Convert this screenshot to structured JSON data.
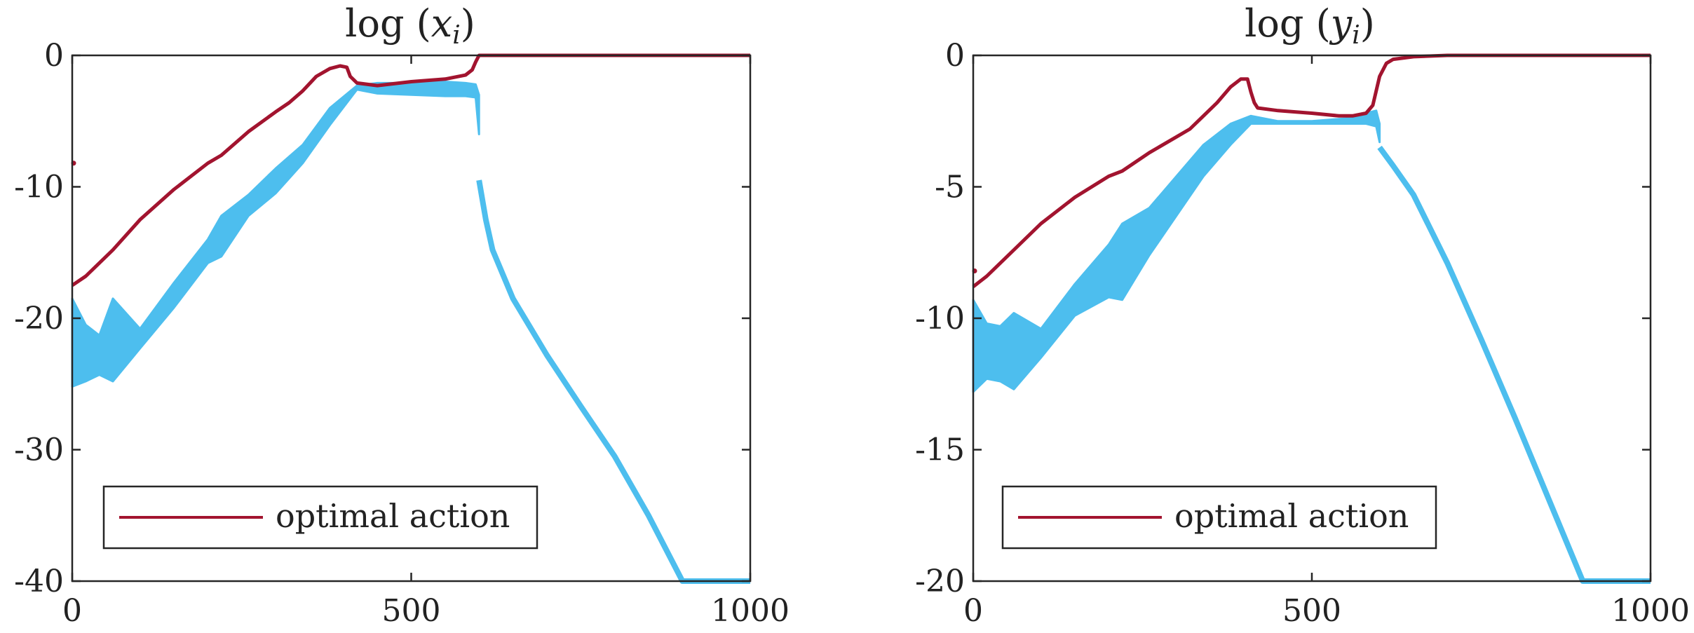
{
  "chart_data": [
    {
      "type": "line",
      "title": "log (x_i)",
      "title_parts": {
        "prefix": "log (",
        "var": "x",
        "sub": "i",
        "suffix": ")"
      },
      "xlabel": "",
      "ylabel": "",
      "xlim": [
        0,
        1000
      ],
      "ylim": [
        -40,
        0
      ],
      "xticks": [
        0,
        500,
        1000
      ],
      "xtick_labels": [
        "0",
        "500",
        "1000"
      ],
      "yticks": [
        0,
        -10,
        -20,
        -30,
        -40
      ],
      "ytick_labels": [
        "0",
        "-10",
        "-20",
        "-30",
        "-40"
      ],
      "grid": false,
      "legend": {
        "placement": "bottom-left",
        "entries": [
          {
            "label": "optimal action",
            "series": "optimal"
          }
        ]
      },
      "colors": {
        "optimal": "#A2142F",
        "others": "#4DBEEE"
      },
      "series": [
        {
          "key": "optimal",
          "label": "optimal action",
          "x": [
            0,
            20,
            60,
            100,
            150,
            200,
            220,
            260,
            300,
            320,
            340,
            360,
            380,
            395,
            405,
            410,
            420,
            450,
            500,
            550,
            580,
            590,
            595,
            600,
            610,
            700,
            800,
            900,
            1000
          ],
          "y": [
            -17.5,
            -16.8,
            -14.8,
            -12.5,
            -10.2,
            -8.2,
            -7.6,
            -5.8,
            -4.3,
            -3.6,
            -2.7,
            -1.6,
            -1.0,
            -0.8,
            -0.9,
            -1.6,
            -2.1,
            -2.3,
            -2.0,
            -1.8,
            -1.5,
            -1.1,
            -0.5,
            0,
            0,
            0,
            0,
            0,
            0
          ],
          "outliers": [
            {
              "x": 0,
              "y": -8.2
            }
          ]
        },
        {
          "key": "others-band",
          "band": true,
          "x": [
            0,
            20,
            40,
            60,
            100,
            150,
            200,
            220,
            260,
            300,
            340,
            380,
            420,
            450,
            500,
            550,
            580,
            595,
            600
          ],
          "y_upper": [
            -18.5,
            -20.5,
            -21.3,
            -18.5,
            -20.8,
            -17.3,
            -14.0,
            -12.2,
            -10.6,
            -8.6,
            -6.8,
            -4.0,
            -2.3,
            -2.1,
            -2.1,
            -2.0,
            -2.1,
            -2.2,
            -3.0
          ],
          "y_lower": [
            -25.2,
            -24.8,
            -24.3,
            -24.8,
            -22.3,
            -19.2,
            -15.8,
            -15.3,
            -12.2,
            -10.5,
            -8.2,
            -5.3,
            -2.6,
            -2.9,
            -3.0,
            -3.1,
            -3.1,
            -3.2,
            -6.0
          ]
        },
        {
          "key": "others-decay",
          "x": [
            600,
            610,
            620,
            650,
            700,
            750,
            800,
            850,
            900,
            950,
            1000
          ],
          "y": [
            -9.5,
            -12.5,
            -14.8,
            -18.5,
            -22.8,
            -26.7,
            -30.5,
            -35.0,
            -40.0,
            -40.0,
            -40.0
          ]
        }
      ]
    },
    {
      "type": "line",
      "title": "log (y_i)",
      "title_parts": {
        "prefix": "log (",
        "var": "y",
        "sub": "i",
        "suffix": ")"
      },
      "xlabel": "",
      "ylabel": "",
      "xlim": [
        0,
        1000
      ],
      "ylim": [
        -20,
        0
      ],
      "xticks": [
        0,
        500,
        1000
      ],
      "xtick_labels": [
        "0",
        "500",
        "1000"
      ],
      "yticks": [
        0,
        -5,
        -10,
        -15,
        -20
      ],
      "ytick_labels": [
        "0",
        "-5",
        "-10",
        "-15",
        "-20"
      ],
      "grid": false,
      "legend": {
        "placement": "bottom-left",
        "entries": [
          {
            "label": "optimal action",
            "series": "optimal"
          }
        ]
      },
      "colors": {
        "optimal": "#A2142F",
        "others": "#4DBEEE"
      },
      "series": [
        {
          "key": "optimal",
          "label": "optimal action",
          "x": [
            0,
            20,
            60,
            100,
            150,
            200,
            220,
            260,
            300,
            320,
            340,
            360,
            380,
            395,
            405,
            410,
            415,
            420,
            450,
            500,
            540,
            560,
            580,
            590,
            600,
            610,
            620,
            650,
            700,
            800,
            900,
            1000
          ],
          "y": [
            -8.8,
            -8.4,
            -7.4,
            -6.4,
            -5.4,
            -4.6,
            -4.4,
            -3.7,
            -3.1,
            -2.8,
            -2.3,
            -1.8,
            -1.2,
            -0.9,
            -0.9,
            -1.4,
            -1.8,
            -2.0,
            -2.1,
            -2.2,
            -2.3,
            -2.3,
            -2.2,
            -1.9,
            -0.8,
            -0.3,
            -0.15,
            -0.05,
            0,
            0,
            0,
            0
          ],
          "outliers": [
            {
              "x": 0,
              "y": -8.2
            }
          ]
        },
        {
          "key": "others-band",
          "band": true,
          "x": [
            0,
            20,
            40,
            60,
            100,
            150,
            200,
            220,
            260,
            300,
            340,
            380,
            410,
            450,
            500,
            550,
            580,
            595,
            600
          ],
          "y_upper": [
            -9.3,
            -10.2,
            -10.3,
            -9.8,
            -10.4,
            -8.7,
            -7.2,
            -6.4,
            -5.8,
            -4.6,
            -3.4,
            -2.6,
            -2.3,
            -2.5,
            -2.5,
            -2.4,
            -2.2,
            -2.1,
            -2.6
          ],
          "y_lower": [
            -12.8,
            -12.3,
            -12.4,
            -12.7,
            -11.5,
            -9.9,
            -9.2,
            -9.3,
            -7.6,
            -6.1,
            -4.6,
            -3.4,
            -2.6,
            -2.6,
            -2.6,
            -2.6,
            -2.6,
            -2.7,
            -3.3
          ]
        },
        {
          "key": "others-decay",
          "x": [
            600,
            620,
            650,
            700,
            750,
            800,
            850,
            900,
            950,
            1000
          ],
          "y": [
            -3.5,
            -4.2,
            -5.3,
            -7.9,
            -10.8,
            -13.8,
            -16.9,
            -20.0,
            -20.0,
            -20.0
          ]
        }
      ]
    }
  ]
}
